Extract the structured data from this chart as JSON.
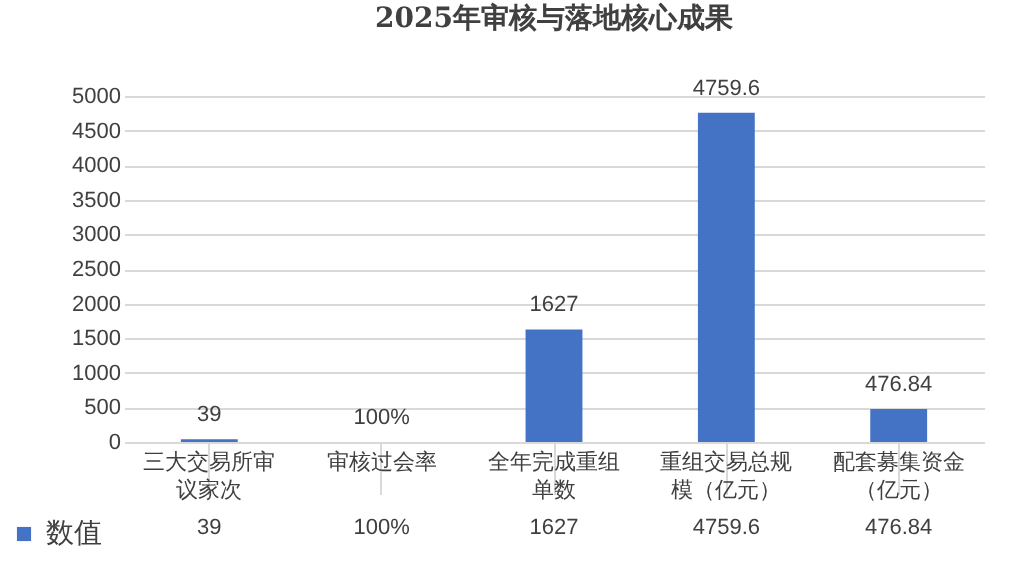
{
  "chart_data": {
    "type": "bar",
    "title": "2025年审核与落地核心成果",
    "categories": [
      "三大交易所审议家次",
      "审核过会率",
      "全年完成重组单数",
      "重组交易总规模（亿元）",
      "配套募集资金（亿元）"
    ],
    "series": [
      {
        "name": "数值",
        "color": "#4472c4",
        "values": [
          39,
          1,
          1627,
          4759.6,
          476.84
        ],
        "value_labels": [
          "39",
          "100%",
          "1627",
          "4759.6",
          "476.84"
        ]
      }
    ],
    "ylim": [
      0,
      5000
    ],
    "yticks": [
      0,
      500,
      1000,
      1500,
      2000,
      2500,
      3000,
      3500,
      4000,
      4500,
      5000
    ],
    "grid": "y",
    "legend": "bottom left"
  }
}
